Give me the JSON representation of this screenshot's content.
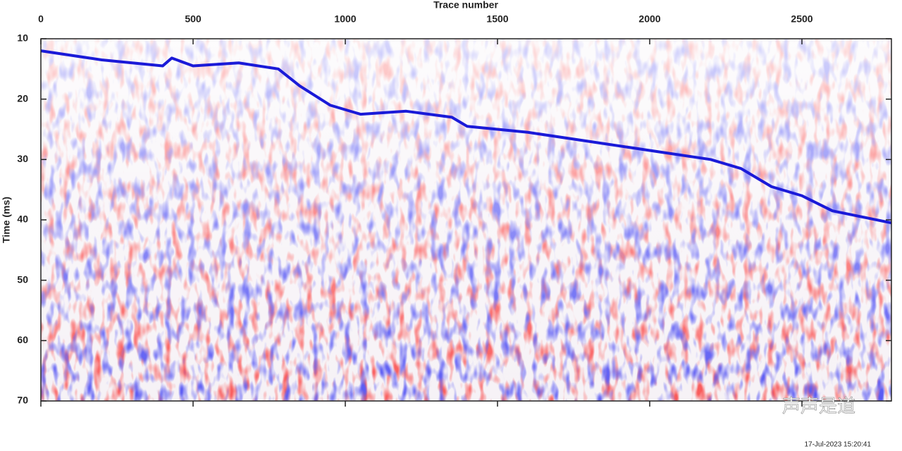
{
  "chart_data": {
    "type": "line",
    "xlabel": "Trace number",
    "ylabel": "Time (ms)",
    "x": [
      0,
      200,
      400,
      430,
      500,
      650,
      780,
      850,
      950,
      1050,
      1200,
      1350,
      1400,
      1600,
      1800,
      2000,
      2200,
      2300,
      2400,
      2500,
      2600,
      2794
    ],
    "series": [
      {
        "color": "#1a1ad8",
        "values": [
          12,
          13.5,
          14.5,
          13.2,
          14.5,
          14,
          15,
          17.8,
          21,
          22.5,
          22,
          23,
          24.5,
          25.5,
          27,
          28.5,
          30,
          31.5,
          34.5,
          36,
          38.5,
          40.5
        ]
      }
    ],
    "xlim": [
      0,
      2794
    ],
    "xticks": [
      0,
      500,
      1000,
      1500,
      2000,
      2500
    ],
    "ylim": [
      10,
      70
    ],
    "yticks": [
      10,
      20,
      30,
      40,
      50,
      60,
      70
    ],
    "y_inverted": true,
    "timestamp": "17-Jul-2023 15:20:41",
    "watermark": "声声是道"
  }
}
